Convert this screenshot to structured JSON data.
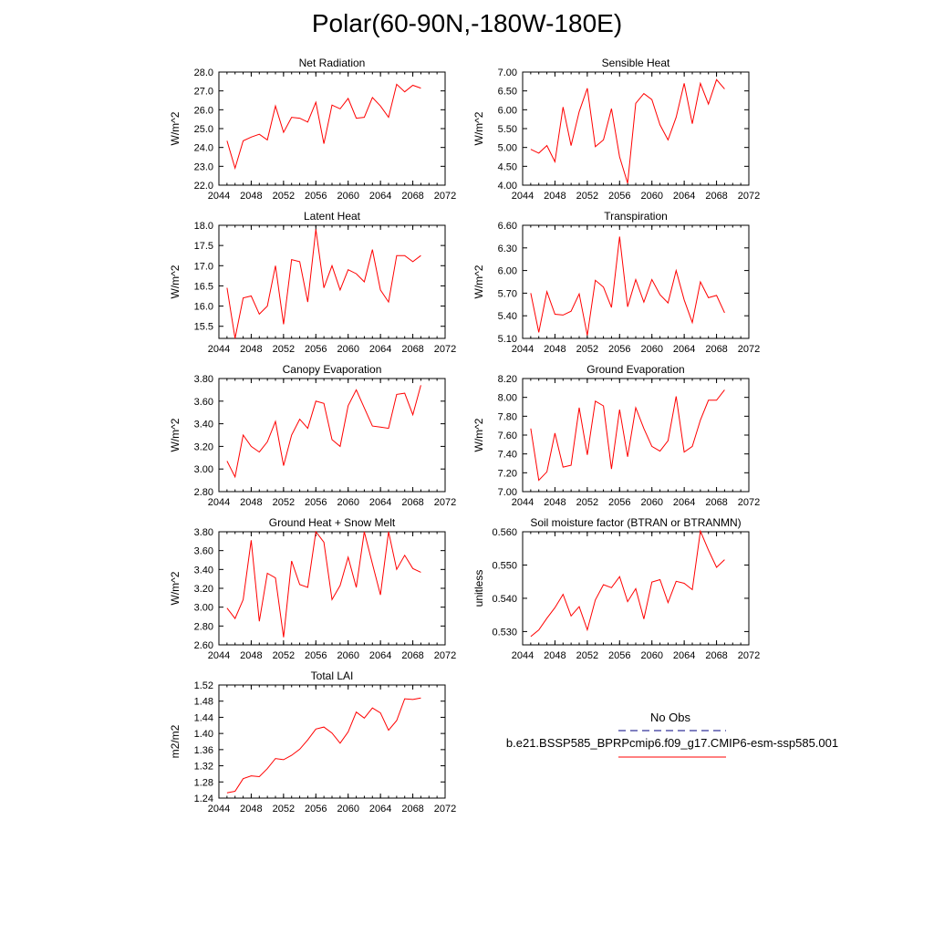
{
  "title": "Polar(60-90N,-180W-180E)",
  "legend": {
    "obs_label": "No Obs",
    "series_label": "b.e21.BSSP585_BPRPcmip6.f09_g17.CMIP6-esm-ssp585.001",
    "series_color": "#ff0000",
    "obs_color": "#000080"
  },
  "chart_data": [
    {
      "type": "line",
      "title": "Net Radiation",
      "ylabel": "W/m^2",
      "xlim": [
        2044,
        2072
      ],
      "xticks": [
        "2044",
        "2048",
        "2052",
        "2056",
        "2060",
        "2064",
        "2068",
        "2072"
      ],
      "ylim": [
        22.0,
        28.0
      ],
      "yticks": [
        "22.0",
        "23.0",
        "24.0",
        "25.0",
        "26.0",
        "27.0",
        "28.0"
      ],
      "x": [
        2045,
        2046,
        2047,
        2048,
        2049,
        2050,
        2051,
        2052,
        2053,
        2054,
        2055,
        2056,
        2057,
        2058,
        2059,
        2060,
        2061,
        2062,
        2063,
        2064,
        2065,
        2066,
        2067,
        2068,
        2069
      ],
      "values": [
        24.35,
        22.9,
        24.35,
        24.55,
        24.7,
        24.4,
        26.2,
        24.8,
        25.6,
        25.55,
        25.35,
        26.4,
        24.2,
        26.25,
        26.05,
        26.6,
        25.55,
        25.6,
        26.65,
        26.2,
        25.6,
        27.35,
        26.95,
        27.3,
        27.15
      ]
    },
    {
      "type": "line",
      "title": "Sensible Heat",
      "ylabel": "W/m^2",
      "xlim": [
        2044,
        2072
      ],
      "xticks": [
        "2044",
        "2048",
        "2052",
        "2056",
        "2060",
        "2064",
        "2068",
        "2072"
      ],
      "ylim": [
        4.0,
        7.0
      ],
      "yticks": [
        "4.00",
        "4.50",
        "5.00",
        "5.50",
        "6.00",
        "6.50",
        "7.00"
      ],
      "x": [
        2045,
        2046,
        2047,
        2048,
        2049,
        2050,
        2051,
        2052,
        2053,
        2054,
        2055,
        2056,
        2057,
        2058,
        2059,
        2060,
        2061,
        2062,
        2063,
        2064,
        2065,
        2066,
        2067,
        2068,
        2069
      ],
      "values": [
        4.95,
        4.85,
        5.05,
        4.62,
        6.07,
        5.05,
        5.95,
        6.57,
        5.02,
        5.2,
        6.03,
        4.75,
        4.05,
        6.17,
        6.43,
        6.27,
        5.6,
        5.2,
        5.8,
        6.7,
        5.63,
        6.7,
        6.15,
        6.8,
        6.55
      ]
    },
    {
      "type": "line",
      "title": "Latent Heat",
      "ylabel": "W/m^2",
      "xlim": [
        2044,
        2072
      ],
      "xticks": [
        "2044",
        "2048",
        "2052",
        "2056",
        "2060",
        "2064",
        "2068",
        "2072"
      ],
      "ylim": [
        15.2,
        18.0
      ],
      "yticks": [
        "15.5",
        "16.0",
        "16.5",
        "17.0",
        "17.5",
        "18.0"
      ],
      "x": [
        2045,
        2046,
        2047,
        2048,
        2049,
        2050,
        2051,
        2052,
        2053,
        2054,
        2055,
        2056,
        2057,
        2058,
        2059,
        2060,
        2061,
        2062,
        2063,
        2064,
        2065,
        2066,
        2067,
        2068,
        2069
      ],
      "values": [
        16.45,
        15.2,
        16.2,
        16.25,
        15.8,
        16.0,
        17.0,
        15.55,
        17.15,
        17.1,
        16.1,
        17.9,
        16.45,
        17.0,
        16.4,
        16.9,
        16.8,
        16.6,
        17.4,
        16.4,
        16.1,
        17.25,
        17.25,
        17.1,
        17.25
      ]
    },
    {
      "type": "line",
      "title": "Transpiration",
      "ylabel": "W/m^2",
      "xlim": [
        2044,
        2072
      ],
      "xticks": [
        "2044",
        "2048",
        "2052",
        "2056",
        "2060",
        "2064",
        "2068",
        "2072"
      ],
      "ylim": [
        5.1,
        6.6
      ],
      "yticks": [
        "5.10",
        "5.40",
        "5.70",
        "6.00",
        "6.30",
        "6.60"
      ],
      "x": [
        2045,
        2046,
        2047,
        2048,
        2049,
        2050,
        2051,
        2052,
        2053,
        2054,
        2055,
        2056,
        2057,
        2058,
        2059,
        2060,
        2061,
        2062,
        2063,
        2064,
        2065,
        2066,
        2067,
        2068,
        2069
      ],
      "values": [
        5.7,
        5.18,
        5.72,
        5.42,
        5.41,
        5.46,
        5.69,
        5.14,
        5.87,
        5.78,
        5.51,
        6.45,
        5.52,
        5.88,
        5.58,
        5.88,
        5.68,
        5.57,
        6.0,
        5.61,
        5.31,
        5.85,
        5.64,
        5.67,
        5.44
      ]
    },
    {
      "type": "line",
      "title": "Canopy Evaporation",
      "ylabel": "W/m^2",
      "xlim": [
        2044,
        2072
      ],
      "xticks": [
        "2044",
        "2048",
        "2052",
        "2056",
        "2060",
        "2064",
        "2068",
        "2072"
      ],
      "ylim": [
        2.8,
        3.8
      ],
      "yticks": [
        "2.80",
        "3.00",
        "3.20",
        "3.40",
        "3.60",
        "3.80"
      ],
      "x": [
        2045,
        2046,
        2047,
        2048,
        2049,
        2050,
        2051,
        2052,
        2053,
        2054,
        2055,
        2056,
        2057,
        2058,
        2059,
        2060,
        2061,
        2062,
        2063,
        2064,
        2065,
        2066,
        2067,
        2068,
        2069
      ],
      "values": [
        3.07,
        2.93,
        3.3,
        3.2,
        3.15,
        3.24,
        3.42,
        3.03,
        3.3,
        3.44,
        3.36,
        3.6,
        3.58,
        3.26,
        3.2,
        3.56,
        3.7,
        3.54,
        3.38,
        3.37,
        3.36,
        3.66,
        3.67,
        3.48,
        3.74
      ]
    },
    {
      "type": "line",
      "title": "Ground Evaporation",
      "ylabel": "W/m^2",
      "xlim": [
        2044,
        2072
      ],
      "xticks": [
        "2044",
        "2048",
        "2052",
        "2056",
        "2060",
        "2064",
        "2068",
        "2072"
      ],
      "ylim": [
        7.0,
        8.2
      ],
      "yticks": [
        "7.00",
        "7.20",
        "7.40",
        "7.60",
        "7.80",
        "8.00",
        "8.20"
      ],
      "x": [
        2045,
        2046,
        2047,
        2048,
        2049,
        2050,
        2051,
        2052,
        2053,
        2054,
        2055,
        2056,
        2057,
        2058,
        2059,
        2060,
        2061,
        2062,
        2063,
        2064,
        2065,
        2066,
        2067,
        2068,
        2069
      ],
      "values": [
        7.67,
        7.12,
        7.21,
        7.62,
        7.26,
        7.28,
        7.89,
        7.39,
        7.96,
        7.91,
        7.24,
        7.87,
        7.37,
        7.89,
        7.67,
        7.48,
        7.43,
        7.54,
        8.01,
        7.42,
        7.48,
        7.76,
        7.97,
        7.97,
        8.08
      ]
    },
    {
      "type": "line",
      "title": "Ground Heat + Snow Melt",
      "ylabel": "W/m^2",
      "xlim": [
        2044,
        2072
      ],
      "xticks": [
        "2044",
        "2048",
        "2052",
        "2056",
        "2060",
        "2064",
        "2068",
        "2072"
      ],
      "ylim": [
        2.6,
        3.8
      ],
      "yticks": [
        "2.60",
        "2.80",
        "3.00",
        "3.20",
        "3.40",
        "3.60",
        "3.80"
      ],
      "x": [
        2045,
        2046,
        2047,
        2048,
        2049,
        2050,
        2051,
        2052,
        2053,
        2054,
        2055,
        2056,
        2057,
        2058,
        2059,
        2060,
        2061,
        2062,
        2063,
        2064,
        2065,
        2066,
        2067,
        2068,
        2069
      ],
      "values": [
        2.99,
        2.88,
        3.08,
        3.71,
        2.85,
        3.36,
        3.31,
        2.68,
        3.49,
        3.24,
        3.21,
        3.8,
        3.69,
        3.08,
        3.23,
        3.53,
        3.21,
        3.8,
        3.46,
        3.13,
        3.8,
        3.4,
        3.55,
        3.41,
        3.37
      ]
    },
    {
      "type": "line",
      "title": "Soil moisture factor (BTRAN or BTRANMN)",
      "ylabel": "unitless",
      "xlim": [
        2044,
        2072
      ],
      "xticks": [
        "2044",
        "2048",
        "2052",
        "2056",
        "2060",
        "2064",
        "2068",
        "2072"
      ],
      "ylim": [
        0.526,
        0.56
      ],
      "yticks": [
        "0.530",
        "0.540",
        "0.550",
        "0.560"
      ],
      "x": [
        2045,
        2046,
        2047,
        2048,
        2049,
        2050,
        2051,
        2052,
        2053,
        2054,
        2055,
        2056,
        2057,
        2058,
        2059,
        2060,
        2061,
        2062,
        2063,
        2064,
        2065,
        2066,
        2067,
        2068,
        2069
      ],
      "values": [
        0.5285,
        0.5305,
        0.534,
        0.5372,
        0.5412,
        0.5347,
        0.5375,
        0.5305,
        0.5395,
        0.5441,
        0.5432,
        0.5465,
        0.539,
        0.5429,
        0.5338,
        0.5449,
        0.5456,
        0.5387,
        0.5451,
        0.5445,
        0.5426,
        0.5602,
        0.5545,
        0.5493,
        0.5516
      ]
    },
    {
      "type": "line",
      "title": "Total LAI",
      "ylabel": "m2/m2",
      "xlim": [
        2044,
        2072
      ],
      "xticks": [
        "2044",
        "2048",
        "2052",
        "2056",
        "2060",
        "2064",
        "2068",
        "2072"
      ],
      "ylim": [
        1.24,
        1.52
      ],
      "yticks": [
        "1.24",
        "1.28",
        "1.32",
        "1.36",
        "1.40",
        "1.44",
        "1.48",
        "1.52"
      ],
      "x": [
        2045,
        2046,
        2047,
        2048,
        2049,
        2050,
        2051,
        2052,
        2053,
        2054,
        2055,
        2056,
        2057,
        2058,
        2059,
        2060,
        2061,
        2062,
        2063,
        2064,
        2065,
        2066,
        2067,
        2068,
        2069
      ],
      "values": [
        1.253,
        1.257,
        1.288,
        1.295,
        1.293,
        1.313,
        1.338,
        1.335,
        1.346,
        1.361,
        1.384,
        1.411,
        1.416,
        1.401,
        1.376,
        1.404,
        1.453,
        1.438,
        1.463,
        1.451,
        1.408,
        1.432,
        1.486,
        1.484,
        1.488
      ]
    }
  ]
}
